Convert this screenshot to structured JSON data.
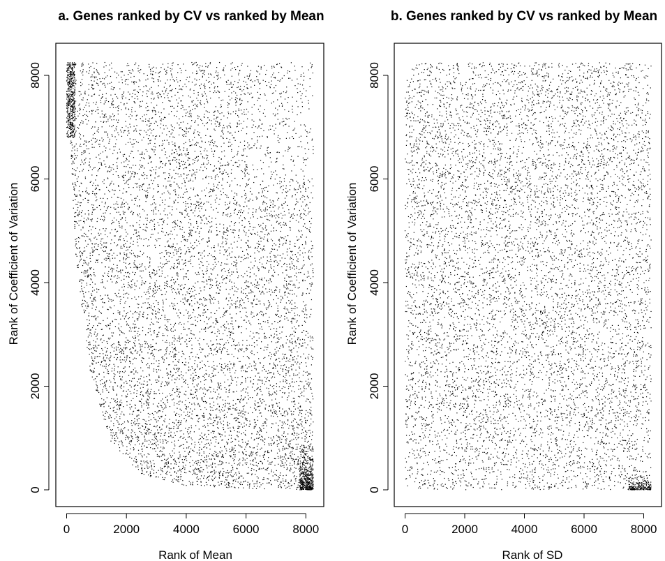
{
  "chart_data": [
    {
      "type": "scatter",
      "panel": "a",
      "title": "a. Genes ranked by CV vs ranked by Mean",
      "xlabel": "Rank of Mean",
      "ylabel": "Rank of Coefficient of Variation",
      "xlim": [
        0,
        8300
      ],
      "ylim": [
        0,
        8300
      ],
      "x_ticks": [
        0,
        2000,
        4000,
        6000,
        8000
      ],
      "y_ticks": [
        0,
        2000,
        4000,
        6000,
        8000
      ],
      "x_tick_labels": [
        "0",
        "2000",
        "4000",
        "6000",
        "8000"
      ],
      "y_tick_labels": [
        "0",
        "2000",
        "4000",
        "6000",
        "8000"
      ],
      "grid": false,
      "marker": "tiny black dot",
      "point_color": "#000000",
      "n_points_approx": 8250,
      "distribution": {
        "shape": "triangular band: empty below a convex boundary running from (0, 8250) toward (8250, 0)",
        "boundary_points": [
          [
            0,
            8250
          ],
          [
            300,
            4500
          ],
          [
            800,
            2200
          ],
          [
            1500,
            900
          ],
          [
            2500,
            300
          ],
          [
            4000,
            80
          ],
          [
            6000,
            20
          ],
          [
            8250,
            0
          ]
        ],
        "dense_regions": [
          "upper-left corner near (0-300, 7000-8250)",
          "lower-right corner near (7700-8250, 0-1200)"
        ]
      }
    },
    {
      "type": "scatter",
      "panel": "b",
      "title": "b. Genes ranked by CV vs ranked by Mean",
      "xlabel": "Rank of SD",
      "ylabel": "Rank of Coefficient of Variation",
      "xlim": [
        0,
        8300
      ],
      "ylim": [
        0,
        8300
      ],
      "x_ticks": [
        0,
        2000,
        4000,
        6000,
        8000
      ],
      "y_ticks": [
        0,
        2000,
        4000,
        6000,
        8000
      ],
      "x_tick_labels": [
        "0",
        "2000",
        "4000",
        "6000",
        "8000"
      ],
      "y_tick_labels": [
        "0",
        "2000",
        "4000",
        "6000",
        "8000"
      ],
      "grid": false,
      "marker": "tiny black dot",
      "point_color": "#000000",
      "n_points_approx": 8250,
      "distribution": {
        "shape": "nearly uniform fill of the square [0,8250] x [0,8250] with rounded, sparser corners",
        "dense_regions": [
          "lower-right corner near (7500-8250, 0-300)"
        ]
      }
    }
  ]
}
